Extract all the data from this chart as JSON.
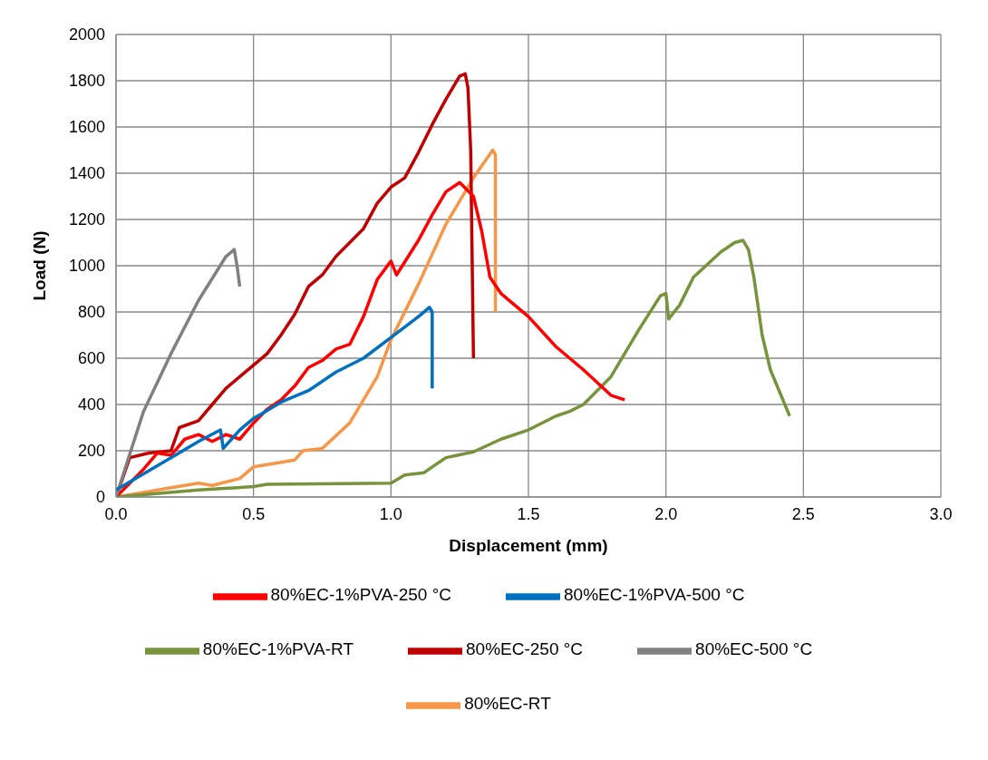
{
  "chart_data": {
    "type": "line",
    "xlabel": "Displacement (mm)",
    "ylabel": "Load (N)",
    "xlim": [
      0,
      3
    ],
    "xticks": [
      {
        "value": 0,
        "label": "0.0"
      },
      {
        "value": 0.5,
        "label": "0.5"
      },
      {
        "value": 1,
        "label": "1.0"
      },
      {
        "value": 1.5,
        "label": "1.5"
      },
      {
        "value": 2,
        "label": "2.0"
      },
      {
        "value": 2.5,
        "label": "2.5"
      },
      {
        "value": 3,
        "label": "3.0"
      }
    ],
    "ylim": [
      0,
      2000
    ],
    "yticks": [
      0,
      200,
      400,
      600,
      800,
      1000,
      1200,
      1400,
      1600,
      1800,
      2000
    ],
    "grid": true,
    "legend": "bottom",
    "marker": "none",
    "line_style": "solid",
    "series": [
      {
        "name": "80%EC-RT",
        "color": "#f79646",
        "x": [
          0,
          0.1,
          0.2,
          0.3,
          0.35,
          0.45,
          0.5,
          0.6,
          0.65,
          0.68,
          0.75,
          0.85,
          0.95,
          1.0,
          1.1,
          1.2,
          1.3,
          1.37,
          1.38,
          1.38
        ],
        "values": [
          0,
          20,
          40,
          60,
          50,
          80,
          130,
          150,
          160,
          200,
          210,
          320,
          520,
          680,
          920,
          1180,
          1380,
          1500,
          1480,
          800
        ]
      },
      {
        "name": "80%EC-1%PVA-RT",
        "color": "#77933c",
        "x": [
          0,
          0.3,
          0.5,
          0.55,
          1.0,
          1.05,
          1.12,
          1.15,
          1.2,
          1.3,
          1.4,
          1.5,
          1.6,
          1.65,
          1.7,
          1.8,
          1.9,
          1.98,
          2.0,
          2.01,
          2.05,
          2.1,
          2.2,
          2.25,
          2.28,
          2.3,
          2.32,
          2.35,
          2.38,
          2.45
        ],
        "values": [
          0,
          30,
          45,
          55,
          60,
          95,
          105,
          130,
          170,
          195,
          250,
          290,
          350,
          370,
          400,
          520,
          720,
          870,
          880,
          770,
          830,
          950,
          1060,
          1100,
          1110,
          1070,
          950,
          700,
          550,
          350
        ]
      },
      {
        "name": "80%EC-250 °C",
        "color": "#c00000",
        "x": [
          0,
          0.05,
          0.12,
          0.2,
          0.23,
          0.3,
          0.35,
          0.4,
          0.45,
          0.5,
          0.55,
          0.6,
          0.65,
          0.7,
          0.75,
          0.8,
          0.9,
          0.95,
          1.0,
          1.05,
          1.1,
          1.15,
          1.2,
          1.25,
          1.27,
          1.28,
          1.29,
          1.3
        ],
        "values": [
          0,
          170,
          190,
          200,
          300,
          330,
          400,
          470,
          520,
          570,
          620,
          700,
          790,
          910,
          960,
          1040,
          1160,
          1270,
          1340,
          1380,
          1490,
          1610,
          1720,
          1820,
          1830,
          1770,
          1500,
          600
        ]
      },
      {
        "name": "80%EC-1%PVA-250 °C",
        "color": "#ff0000",
        "x": [
          0,
          0.1,
          0.15,
          0.2,
          0.25,
          0.3,
          0.35,
          0.4,
          0.45,
          0.5,
          0.55,
          0.6,
          0.65,
          0.7,
          0.75,
          0.8,
          0.85,
          0.9,
          0.95,
          1.0,
          1.02,
          1.1,
          1.15,
          1.2,
          1.25,
          1.3,
          1.33,
          1.36,
          1.4,
          1.5,
          1.6,
          1.7,
          1.8,
          1.85
        ],
        "values": [
          0,
          120,
          190,
          180,
          250,
          270,
          240,
          270,
          250,
          320,
          380,
          420,
          480,
          560,
          590,
          640,
          660,
          780,
          940,
          1020,
          960,
          1110,
          1220,
          1320,
          1360,
          1300,
          1150,
          950,
          880,
          780,
          650,
          550,
          440,
          420
        ]
      },
      {
        "name": "80%EC-500 °C",
        "color": "#808080",
        "x": [
          0,
          0.1,
          0.2,
          0.3,
          0.4,
          0.43,
          0.44,
          0.45
        ],
        "values": [
          0,
          370,
          620,
          850,
          1040,
          1070,
          1000,
          910
        ]
      },
      {
        "name": "80%EC-1%PVA-500 °C",
        "color": "#0070c0",
        "x": [
          0,
          0.1,
          0.2,
          0.3,
          0.38,
          0.39,
          0.45,
          0.5,
          0.53,
          0.6,
          0.7,
          0.8,
          0.9,
          1.0,
          1.1,
          1.14,
          1.15,
          1.15
        ],
        "values": [
          30,
          100,
          170,
          240,
          290,
          210,
          290,
          340,
          360,
          410,
          460,
          540,
          600,
          690,
          780,
          820,
          800,
          470
        ]
      }
    ]
  }
}
